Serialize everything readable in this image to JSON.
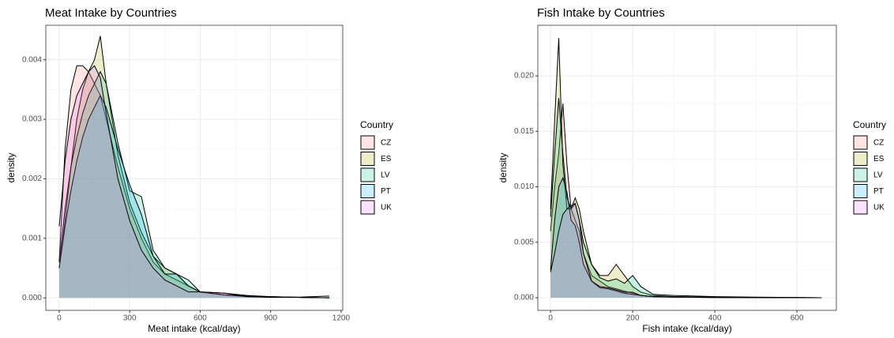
{
  "chart_data": [
    {
      "type": "density",
      "title": "Meat Intake by Countries",
      "x_label": "Meat intake (kcal/day)",
      "y_label": "density",
      "legend_title": "Country",
      "legend": "right",
      "grid": true,
      "alpha": 0.2,
      "x": [
        0,
        25,
        50,
        75,
        100,
        125,
        150,
        175,
        200,
        250,
        300,
        350,
        400,
        450,
        500,
        550,
        600,
        700,
        800,
        900,
        1000,
        1150
      ],
      "series": [
        {
          "name": "CZ",
          "color": "#F8766D",
          "values": [
            0.0006,
            0.0025,
            0.0035,
            0.0039,
            0.0039,
            0.0038,
            0.0036,
            0.0034,
            0.003,
            0.0022,
            0.0015,
            0.001,
            0.0006,
            0.0004,
            0.0003,
            0.0002,
            0.0001,
            8e-05,
            4e-05,
            2e-05,
            1e-05,
            0
          ]
        },
        {
          "name": "ES",
          "color": "#A3A500",
          "values": [
            0.0005,
            0.0013,
            0.0022,
            0.003,
            0.0035,
            0.0038,
            0.004,
            0.0044,
            0.0036,
            0.0024,
            0.0016,
            0.0011,
            0.0007,
            0.0005,
            0.0004,
            0.0002,
            0.0001,
            5e-05,
            3e-05,
            2e-05,
            1e-05,
            0
          ]
        },
        {
          "name": "LV",
          "color": "#00BF7D",
          "values": [
            0.0006,
            0.0015,
            0.0022,
            0.0027,
            0.0031,
            0.0034,
            0.0036,
            0.0038,
            0.0036,
            0.0026,
            0.0018,
            0.0017,
            0.0008,
            0.0005,
            0.0004,
            0.0003,
            0.0001,
            5e-05,
            3e-05,
            1e-05,
            1e-05,
            3e-05
          ]
        },
        {
          "name": "PT",
          "color": "#00B0F6",
          "values": [
            0.0005,
            0.0012,
            0.0018,
            0.0023,
            0.0027,
            0.003,
            0.0032,
            0.0034,
            0.0032,
            0.0025,
            0.0019,
            0.0014,
            0.0007,
            0.0004,
            0.0004,
            0.0002,
            0.0001,
            5e-05,
            2e-05,
            1e-05,
            1e-05,
            0
          ]
        },
        {
          "name": "UK",
          "color": "#E76BF3",
          "values": [
            0.0012,
            0.0023,
            0.003,
            0.0034,
            0.0036,
            0.0038,
            0.0039,
            0.0037,
            0.0031,
            0.002,
            0.0013,
            0.0008,
            0.0005,
            0.0003,
            0.0002,
            0.0001,
            0.0001,
            8e-05,
            2e-05,
            1e-05,
            1e-05,
            0
          ]
        }
      ],
      "xlim": [
        -57,
        1207
      ],
      "xticks": [
        0,
        300,
        600,
        900,
        1200
      ],
      "ylim": [
        -0.00021,
        0.00458
      ],
      "yticks": [
        {
          "value": 0,
          "label": "0.000"
        },
        0.001,
        0.002,
        0.003,
        0.004
      ]
    },
    {
      "type": "density",
      "title": "Fish Intake by Countries",
      "x_label": "Fish intake (kcal/day)",
      "y_label": "density",
      "legend_title": "Country",
      "legend": "right",
      "grid": true,
      "alpha": 0.2,
      "x": [
        0,
        10,
        20,
        30,
        40,
        50,
        60,
        70,
        80,
        100,
        120,
        140,
        160,
        180,
        200,
        220,
        250,
        300,
        400,
        500,
        660
      ],
      "series": [
        {
          "name": "CZ",
          "color": "#F8766D",
          "values": [
            0.006,
            0.01,
            0.013,
            0.0175,
            0.012,
            0.008,
            0.007,
            0.006,
            0.004,
            0.002,
            0.0015,
            0.001,
            0.0008,
            0.0006,
            0.0004,
            0.0002,
            0.0001,
            0.0001,
            5e-05,
            2e-05,
            0
          ]
        },
        {
          "name": "ES",
          "color": "#A3A500",
          "values": [
            0.008,
            0.016,
            0.0234,
            0.012,
            0.008,
            0.008,
            0.009,
            0.008,
            0.006,
            0.003,
            0.002,
            0.002,
            0.003,
            0.002,
            0.001,
            0.0005,
            0.0002,
            0.0001,
            5e-05,
            2e-05,
            0
          ]
        },
        {
          "name": "LV",
          "color": "#00BF7D",
          "values": [
            0.0073,
            0.013,
            0.018,
            0.013,
            0.009,
            0.008,
            0.0085,
            0.007,
            0.005,
            0.003,
            0.0018,
            0.0015,
            0.0017,
            0.0013,
            0.002,
            0.001,
            0.0003,
            0.0002,
            0.0001,
            5e-05,
            0
          ]
        },
        {
          "name": "PT",
          "color": "#00B0F6",
          "values": [
            0.0025,
            0.007,
            0.01,
            0.0108,
            0.0095,
            0.007,
            0.0065,
            0.005,
            0.003,
            0.0015,
            0.0009,
            0.0008,
            0.0006,
            0.0004,
            0.0003,
            0.0002,
            0.0001,
            5e-05,
            2e-05,
            1e-05,
            0
          ]
        },
        {
          "name": "UK",
          "color": "#E76BF3",
          "values": [
            0.0023,
            0.004,
            0.006,
            0.0075,
            0.008,
            0.0083,
            0.0085,
            0.007,
            0.004,
            0.0015,
            0.001,
            0.0009,
            0.0007,
            0.0005,
            0.0005,
            0.0002,
            0.0001,
            5e-05,
            2e-05,
            1e-05,
            0
          ]
        }
      ],
      "xlim": [
        -31,
        696
      ],
      "xticks": [
        0,
        200,
        400,
        600
      ],
      "ylim": [
        -0.00114,
        0.02456
      ],
      "yticks": [
        {
          "value": 0,
          "label": "0.000"
        },
        0.005,
        {
          "value": 0.01,
          "label": "0.010"
        },
        0.015,
        {
          "value": 0.02,
          "label": "0.020"
        }
      ]
    }
  ]
}
